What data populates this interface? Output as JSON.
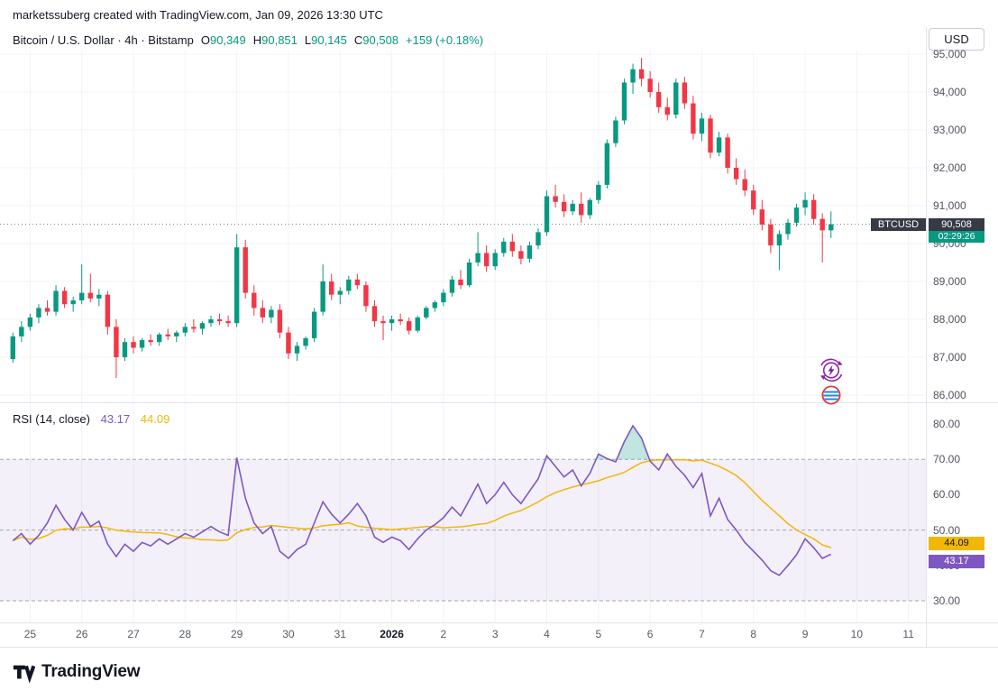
{
  "attribution": {
    "text": "marketssuberg created with TradingView.com, Jan 09, 2026 13:30 UTC"
  },
  "symbol": {
    "title": "Bitcoin / U.S. Dollar · 4h · Bitstamp",
    "o_label": "O",
    "o": "90,349",
    "h_label": "H",
    "h": "90,851",
    "l_label": "L",
    "l": "90,145",
    "c_label": "C",
    "c": "90,508",
    "change": "+159 (+0.18%)"
  },
  "currency_button": {
    "label": "USD"
  },
  "price_badge": {
    "symbol": "BTCUSD",
    "price": "90,508",
    "countdown": "02:29:26"
  },
  "rsi_header": {
    "title": "RSI",
    "params": "(14, close)",
    "purple": "43.17",
    "yellow": "44.09"
  },
  "rsi_badges": {
    "yellow": "44.09",
    "purple": "43.17"
  },
  "footer": {
    "brand": "TradingView"
  },
  "colors": {
    "up": "#089981",
    "down": "#F23645",
    "rsi_line": "#7E57C2",
    "rsi_ma_line": "#F2B705",
    "badge_dark": "#363A45",
    "band_fill": "rgba(126,87,194,0.09)",
    "overbought_fill": "rgba(8,153,129,0.25)",
    "grid": "#F0F3FA",
    "dashed": "#A3A6AF",
    "current_price_line": "#787B86",
    "axis_text": "#50535E"
  },
  "chart_data": {
    "type": "candlestick",
    "title": "Bitcoin / U.S. Dollar",
    "symbol": "BTCUSD",
    "interval": "4h",
    "exchange": "Bitstamp",
    "current_price": 90508,
    "last_candle": {
      "open": 90349,
      "high": 90851,
      "low": 90145,
      "close": 90508,
      "change": 159,
      "change_pct": 0.18
    },
    "price_range": [
      86000,
      95000
    ],
    "price_axis": {
      "tick_labels": [
        {
          "value": 95000,
          "label": "95,000"
        },
        {
          "value": 94000,
          "label": "94,000"
        },
        {
          "value": 93000,
          "label": "93,000"
        },
        {
          "value": 92000,
          "label": "92,000"
        },
        {
          "value": 91000,
          "label": "91,000"
        },
        {
          "value": 90000,
          "label": "90,000"
        },
        {
          "value": 89000,
          "label": "89,000"
        },
        {
          "value": 88000,
          "label": "88,000"
        },
        {
          "value": 87000,
          "label": "87,000"
        },
        {
          "value": 86000,
          "label": "86,000"
        }
      ]
    },
    "time_axis": {
      "tick_labels": [
        "25",
        "26",
        "27",
        "28",
        "29",
        "30",
        "31",
        "2026",
        "2",
        "3",
        "4",
        "5",
        "6",
        "7",
        "8",
        "9",
        "10",
        "11"
      ],
      "bold_index": 7
    },
    "candles_ohlc": [
      [
        86950,
        87650,
        86850,
        87550
      ],
      [
        87550,
        87950,
        87400,
        87800
      ],
      [
        87800,
        88150,
        87700,
        88050
      ],
      [
        88050,
        88400,
        87900,
        88300
      ],
      [
        88300,
        88500,
        88100,
        88200
      ],
      [
        88200,
        88900,
        88100,
        88750
      ],
      [
        88750,
        88850,
        88300,
        88400
      ],
      [
        88400,
        88600,
        88200,
        88500
      ],
      [
        88500,
        89450,
        88400,
        88700
      ],
      [
        88700,
        89200,
        88450,
        88550
      ],
      [
        88550,
        88800,
        88350,
        88650
      ],
      [
        88650,
        88750,
        87600,
        87800
      ],
      [
        87800,
        88000,
        86450,
        87000
      ],
      [
        87000,
        87500,
        86900,
        87400
      ],
      [
        87400,
        87550,
        87100,
        87250
      ],
      [
        87250,
        87500,
        87150,
        87450
      ],
      [
        87450,
        87600,
        87300,
        87400
      ],
      [
        87400,
        87650,
        87300,
        87600
      ],
      [
        87600,
        87750,
        87450,
        87550
      ],
      [
        87550,
        87700,
        87400,
        87650
      ],
      [
        87650,
        87900,
        87550,
        87800
      ],
      [
        87800,
        88000,
        87650,
        87750
      ],
      [
        87750,
        87950,
        87600,
        87900
      ],
      [
        87900,
        88100,
        87800,
        88000
      ],
      [
        88000,
        88150,
        87850,
        87950
      ],
      [
        87950,
        88100,
        87800,
        87900
      ],
      [
        87900,
        90250,
        87800,
        89900
      ],
      [
        89900,
        90100,
        88550,
        88700
      ],
      [
        88700,
        88900,
        88100,
        88300
      ],
      [
        88300,
        88500,
        87900,
        88050
      ],
      [
        88050,
        88350,
        87900,
        88250
      ],
      [
        88250,
        88400,
        87500,
        87650
      ],
      [
        87650,
        87800,
        86950,
        87100
      ],
      [
        87100,
        87400,
        86900,
        87300
      ],
      [
        87300,
        87550,
        87200,
        87500
      ],
      [
        87500,
        88300,
        87400,
        88200
      ],
      [
        88200,
        89450,
        88100,
        89000
      ],
      [
        89000,
        89200,
        88500,
        88650
      ],
      [
        88650,
        88850,
        88400,
        88750
      ],
      [
        88750,
        89150,
        88650,
        89050
      ],
      [
        89050,
        89200,
        88800,
        88900
      ],
      [
        88900,
        89000,
        88200,
        88350
      ],
      [
        88350,
        88500,
        87800,
        87950
      ],
      [
        87950,
        88100,
        87450,
        87900
      ],
      [
        87900,
        88100,
        87700,
        88000
      ],
      [
        88000,
        88150,
        87850,
        87950
      ],
      [
        87950,
        88050,
        87600,
        87700
      ],
      [
        87700,
        88100,
        87650,
        88050
      ],
      [
        88050,
        88350,
        88000,
        88300
      ],
      [
        88300,
        88500,
        88200,
        88450
      ],
      [
        88450,
        88800,
        88350,
        88700
      ],
      [
        88700,
        89150,
        88600,
        89050
      ],
      [
        89050,
        89300,
        88800,
        88900
      ],
      [
        88900,
        89600,
        88850,
        89500
      ],
      [
        89500,
        90300,
        89400,
        89750
      ],
      [
        89750,
        89950,
        89250,
        89400
      ],
      [
        89400,
        89850,
        89300,
        89750
      ],
      [
        89750,
        90150,
        89650,
        90050
      ],
      [
        90050,
        90250,
        89650,
        89800
      ],
      [
        89800,
        89950,
        89450,
        89600
      ],
      [
        89600,
        90050,
        89500,
        89950
      ],
      [
        89950,
        90400,
        89850,
        90300
      ],
      [
        90300,
        91400,
        90200,
        91250
      ],
      [
        91250,
        91550,
        90950,
        91100
      ],
      [
        91100,
        91300,
        90700,
        90850
      ],
      [
        90850,
        91150,
        90750,
        91050
      ],
      [
        91050,
        91350,
        90550,
        90750
      ],
      [
        90750,
        91200,
        90650,
        91150
      ],
      [
        91150,
        91650,
        91050,
        91550
      ],
      [
        91550,
        92750,
        91450,
        92650
      ],
      [
        92650,
        93350,
        92550,
        93250
      ],
      [
        93250,
        94350,
        93150,
        94250
      ],
      [
        94250,
        94750,
        93950,
        94600
      ],
      [
        94600,
        94900,
        94150,
        94350
      ],
      [
        94350,
        94550,
        93850,
        94000
      ],
      [
        94000,
        94250,
        93450,
        93600
      ],
      [
        93600,
        93850,
        93250,
        93400
      ],
      [
        93400,
        94350,
        93300,
        94250
      ],
      [
        94250,
        94400,
        93550,
        93700
      ],
      [
        93700,
        93900,
        92750,
        92900
      ],
      [
        92900,
        93450,
        92700,
        93300
      ],
      [
        93300,
        93400,
        92250,
        92400
      ],
      [
        92400,
        92950,
        92300,
        92800
      ],
      [
        92800,
        92900,
        91850,
        92000
      ],
      [
        92000,
        92250,
        91550,
        91700
      ],
      [
        91700,
        91950,
        91250,
        91400
      ],
      [
        91400,
        91550,
        90750,
        90900
      ],
      [
        90900,
        91150,
        90350,
        90500
      ],
      [
        90500,
        90650,
        89750,
        89950
      ],
      [
        89950,
        90350,
        89300,
        90250
      ],
      [
        90250,
        90650,
        90100,
        90550
      ],
      [
        90550,
        91050,
        90450,
        90950
      ],
      [
        90950,
        91350,
        90750,
        91150
      ],
      [
        91150,
        91300,
        90500,
        90650
      ],
      [
        90650,
        90800,
        89500,
        90349
      ],
      [
        90349,
        90851,
        90145,
        90508
      ]
    ],
    "indicator": {
      "type": "line",
      "name": "RSI",
      "period": 14,
      "source": "close",
      "value": 43.17,
      "ma_value": 44.09,
      "ma_period": 14,
      "bands": {
        "upper": 70,
        "middle": 50,
        "lower": 30
      },
      "axis_ticks": [
        {
          "value": 80,
          "label": "80.00"
        },
        {
          "value": 70,
          "label": "70.00"
        },
        {
          "value": 60,
          "label": "60.00"
        },
        {
          "value": 50,
          "label": "50.00"
        },
        {
          "value": 40,
          "label": "40.00"
        },
        {
          "value": 30,
          "label": "30.00"
        }
      ],
      "values": [
        47,
        49,
        46,
        48.5,
        52,
        57,
        53,
        50,
        55,
        51,
        52.5,
        46,
        42.5,
        46,
        44,
        46.5,
        45.5,
        47.5,
        46,
        47.5,
        49,
        48,
        49.5,
        51,
        49.5,
        48.5,
        70.5,
        59,
        52,
        49,
        51,
        44,
        42,
        44.5,
        46,
        52,
        58,
        54.5,
        52,
        54.5,
        57.5,
        54,
        48,
        46.5,
        48,
        47,
        44.5,
        47.5,
        50,
        51.5,
        53.5,
        56.5,
        54,
        58.5,
        63,
        57.5,
        60,
        63.5,
        60,
        57.5,
        61,
        64.5,
        71,
        68,
        65,
        67,
        62.5,
        66,
        71.5,
        70.2,
        69.3,
        75,
        79.5,
        76,
        69.5,
        67,
        71.5,
        68,
        65.5,
        62,
        66,
        54,
        59,
        53,
        50,
        46.5,
        44,
        41.5,
        38.5,
        37.2,
        40,
        43,
        47.5,
        45,
        42,
        43.17
      ]
    }
  }
}
